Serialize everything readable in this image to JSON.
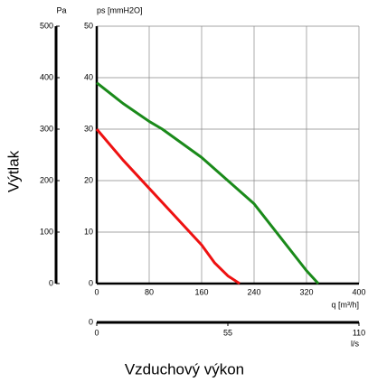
{
  "chart_data": {
    "type": "line",
    "y_label": "Výtlak",
    "x_label": "Vzduchový výkon",
    "y_unit_label": "ps [mmH2O]",
    "x_unit_label": "q [m³/h]",
    "ylim": [
      0,
      50
    ],
    "yticks": [
      0,
      10,
      20,
      30,
      40,
      50
    ],
    "xlim": [
      0,
      400
    ],
    "xticks": [
      0,
      80,
      160,
      240,
      320,
      400
    ],
    "y2_unit_label": "Pa",
    "y2lim": [
      0,
      500
    ],
    "y2ticks": [
      0,
      100,
      200,
      300,
      400,
      500
    ],
    "x2_unit_label": "l/s",
    "x2_origin_label": "0",
    "x2lim": [
      0,
      110
    ],
    "x2ticks": [
      0,
      55,
      110
    ],
    "grid": true,
    "series": [
      {
        "color": "#1a8a1a",
        "x": [
          0,
          40,
          80,
          100,
          160,
          200,
          240,
          280,
          320,
          338
        ],
        "values": [
          39,
          35,
          31.5,
          30,
          24.5,
          20,
          15.5,
          9,
          2.5,
          0
        ]
      },
      {
        "color": "#ee1111",
        "x": [
          0,
          40,
          80,
          120,
          160,
          180,
          200,
          218
        ],
        "values": [
          30,
          24,
          18.5,
          13,
          7.5,
          4,
          1.5,
          0
        ]
      }
    ]
  }
}
